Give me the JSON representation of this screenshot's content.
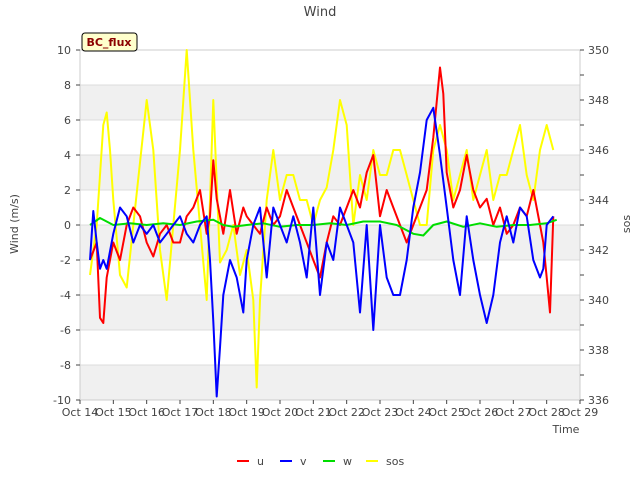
{
  "chart_data": {
    "type": "line",
    "title": "Wind",
    "badge": "BC_flux",
    "xlabel": "Time",
    "ylabel": "Wind (m/s)",
    "y2label": "sos",
    "xlim": [
      14,
      29
    ],
    "ylim": [
      -10,
      10
    ],
    "y2lim": [
      336,
      350
    ],
    "x_ticks": [
      {
        "v": 14,
        "label": "Oct 14"
      },
      {
        "v": 15,
        "label": "Oct 15"
      },
      {
        "v": 16,
        "label": "Oct 16"
      },
      {
        "v": 17,
        "label": "Oct 17"
      },
      {
        "v": 18,
        "label": "Oct 18"
      },
      {
        "v": 19,
        "label": "Oct 19"
      },
      {
        "v": 20,
        "label": "Oct 20"
      },
      {
        "v": 21,
        "label": "Oct 21"
      },
      {
        "v": 22,
        "label": "Oct 22"
      },
      {
        "v": 23,
        "label": "Oct 23"
      },
      {
        "v": 24,
        "label": "Oct 24"
      },
      {
        "v": 25,
        "label": "Oct 25"
      },
      {
        "v": 26,
        "label": "Oct 26"
      },
      {
        "v": 27,
        "label": "Oct 27"
      },
      {
        "v": 28,
        "label": "Oct 28"
      },
      {
        "v": 29,
        "label": "Oct 29"
      }
    ],
    "y_ticks": [
      {
        "v": -10,
        "label": "-10"
      },
      {
        "v": -8,
        "label": "-8"
      },
      {
        "v": -6,
        "label": "-6"
      },
      {
        "v": -4,
        "label": "-4"
      },
      {
        "v": -2,
        "label": "-2"
      },
      {
        "v": 0,
        "label": "0"
      },
      {
        "v": 2,
        "label": "2"
      },
      {
        "v": 4,
        "label": "4"
      },
      {
        "v": 6,
        "label": "6"
      },
      {
        "v": 8,
        "label": "8"
      },
      {
        "v": 10,
        "label": "10"
      }
    ],
    "y2_ticks": [
      {
        "v": 336,
        "label": "336"
      },
      {
        "v": 338,
        "label": "338"
      },
      {
        "v": 340,
        "label": "340"
      },
      {
        "v": 342,
        "label": "342"
      },
      {
        "v": 344,
        "label": "344"
      },
      {
        "v": 346,
        "label": "346"
      },
      {
        "v": 348,
        "label": "348"
      },
      {
        "v": 350,
        "label": "350"
      }
    ],
    "series": [
      {
        "name": "u",
        "color": "#ff0000",
        "axis": "left",
        "x": [
          14.3,
          14.5,
          14.6,
          14.7,
          14.8,
          15.0,
          15.2,
          15.4,
          15.6,
          15.8,
          16.0,
          16.2,
          16.4,
          16.6,
          16.8,
          17.0,
          17.2,
          17.4,
          17.6,
          17.8,
          17.9,
          18.0,
          18.1,
          18.3,
          18.5,
          18.7,
          18.9,
          19.0,
          19.2,
          19.4,
          19.6,
          19.8,
          20.0,
          20.2,
          20.4,
          20.6,
          20.8,
          21.0,
          21.2,
          21.4,
          21.6,
          21.8,
          22.0,
          22.2,
          22.4,
          22.6,
          22.8,
          23.0,
          23.2,
          23.4,
          23.6,
          23.8,
          24.0,
          24.2,
          24.4,
          24.6,
          24.8,
          24.9,
          25.0,
          25.2,
          25.4,
          25.6,
          25.8,
          26.0,
          26.2,
          26.4,
          26.6,
          26.8,
          27.0,
          27.2,
          27.4,
          27.6,
          27.8,
          27.9,
          28.0,
          28.1,
          28.2
        ],
        "y": [
          -2,
          -1,
          -5.3,
          -5.6,
          -3,
          -1,
          -2,
          0,
          1,
          0.5,
          -1,
          -1.8,
          -0.5,
          0,
          -1,
          -1,
          0.5,
          1,
          2,
          -0.5,
          0.5,
          3.7,
          1.5,
          -0.5,
          2,
          -0.5,
          1,
          0.5,
          0,
          -0.5,
          1,
          0,
          0.5,
          2,
          1,
          0,
          -1,
          -2,
          -3,
          -1,
          0.5,
          0,
          1,
          2,
          1,
          3,
          4,
          0.5,
          2,
          1,
          0,
          -1,
          0,
          1,
          2,
          5,
          9,
          7.5,
          3,
          1,
          2,
          4,
          2,
          1,
          1.5,
          0,
          1,
          -0.5,
          0,
          1,
          0.5,
          2,
          0,
          -1,
          -3,
          -5,
          0.5
        ]
      },
      {
        "name": "v",
        "color": "#0000ff",
        "axis": "left",
        "x": [
          14.3,
          14.4,
          14.5,
          14.6,
          14.7,
          14.8,
          15.0,
          15.2,
          15.4,
          15.6,
          15.8,
          16.0,
          16.2,
          16.4,
          16.6,
          16.8,
          17.0,
          17.2,
          17.4,
          17.6,
          17.8,
          17.9,
          18.0,
          18.1,
          18.2,
          18.3,
          18.5,
          18.7,
          18.9,
          19.0,
          19.2,
          19.4,
          19.6,
          19.8,
          20.0,
          20.2,
          20.4,
          20.6,
          20.8,
          21.0,
          21.2,
          21.4,
          21.6,
          21.8,
          22.0,
          22.2,
          22.4,
          22.6,
          22.8,
          23.0,
          23.2,
          23.4,
          23.6,
          23.8,
          24.0,
          24.2,
          24.4,
          24.6,
          24.8,
          25.0,
          25.2,
          25.4,
          25.6,
          25.8,
          26.0,
          26.2,
          26.4,
          26.6,
          26.8,
          27.0,
          27.2,
          27.4,
          27.6,
          27.8,
          27.9,
          28.0,
          28.2
        ],
        "y": [
          -2,
          0.8,
          -1,
          -2.5,
          -2,
          -2.5,
          -0.5,
          1,
          0.5,
          -1,
          0,
          -0.5,
          0,
          -1,
          -0.5,
          0,
          0.5,
          -0.5,
          -1,
          0,
          0.5,
          -2,
          -5.5,
          -9.8,
          -7,
          -4,
          -2,
          -3,
          -5,
          -2,
          0,
          1,
          -3,
          1,
          0,
          -1,
          0.5,
          -1,
          -3,
          1,
          -4,
          -1,
          -2,
          1,
          0,
          -1,
          -5,
          0,
          -6,
          0,
          -3,
          -4,
          -4,
          -2,
          1,
          3,
          6,
          6.7,
          4,
          1,
          -2,
          -4,
          0.5,
          -2,
          -4,
          -5.6,
          -4,
          -1,
          0.5,
          -1,
          1,
          0.5,
          -2,
          -3,
          -2.5,
          0,
          0.5
        ]
      },
      {
        "name": "w",
        "color": "#00dd00",
        "axis": "left",
        "x": [
          14.3,
          14.6,
          15.0,
          15.5,
          16.0,
          16.5,
          17.0,
          17.5,
          18.0,
          18.3,
          18.6,
          19.0,
          19.5,
          20.0,
          20.5,
          21.0,
          21.5,
          22.0,
          22.5,
          23.0,
          23.5,
          24.0,
          24.3,
          24.6,
          25.0,
          25.5,
          26.0,
          26.5,
          27.0,
          27.5,
          28.0,
          28.3
        ],
        "y": [
          0,
          0.4,
          0,
          0.1,
          0,
          0.1,
          0,
          0.2,
          0.3,
          0,
          -0.1,
          0,
          0.1,
          -0.1,
          0,
          0,
          0.1,
          0,
          0.2,
          0.2,
          0,
          -0.5,
          -0.6,
          0,
          0.2,
          -0.1,
          0.1,
          -0.1,
          0,
          0,
          0.1,
          0.3
        ]
      },
      {
        "name": "sos",
        "color": "#ffff00",
        "axis": "right",
        "x": [
          14.3,
          14.4,
          14.5,
          14.6,
          14.7,
          14.8,
          14.9,
          15.0,
          15.2,
          15.4,
          15.6,
          15.8,
          16.0,
          16.2,
          16.4,
          16.6,
          16.8,
          17.0,
          17.2,
          17.4,
          17.6,
          17.8,
          18.0,
          18.2,
          18.4,
          18.6,
          18.8,
          19.0,
          19.2,
          19.3,
          19.4,
          19.6,
          19.8,
          20.0,
          20.2,
          20.4,
          20.6,
          20.8,
          21.0,
          21.2,
          21.4,
          21.6,
          21.8,
          22.0,
          22.2,
          22.4,
          22.6,
          22.8,
          23.0,
          23.2,
          23.4,
          23.6,
          23.8,
          24.0,
          24.2,
          24.4,
          24.6,
          24.8,
          25.0,
          25.2,
          25.4,
          25.6,
          25.8,
          26.0,
          26.2,
          26.4,
          26.6,
          26.8,
          27.0,
          27.2,
          27.4,
          27.6,
          27.8,
          28.0,
          28.2
        ],
        "y": [
          341,
          342,
          343,
          345,
          347,
          347.5,
          346,
          344,
          341,
          340.5,
          343,
          345.5,
          348,
          346,
          342,
          340,
          343,
          346,
          350,
          346,
          343,
          340,
          348,
          341.5,
          342,
          343,
          341,
          342,
          340,
          336.5,
          340,
          344,
          346,
          344,
          345,
          345,
          344,
          344,
          343,
          344,
          344.5,
          346,
          348,
          347,
          343,
          345,
          344,
          346,
          345,
          345,
          346,
          346,
          345,
          344,
          343,
          343,
          346,
          347,
          346,
          344,
          345,
          346,
          344,
          345,
          346,
          344,
          345,
          345,
          346,
          347,
          345,
          344,
          346,
          347,
          346
        ]
      }
    ]
  }
}
